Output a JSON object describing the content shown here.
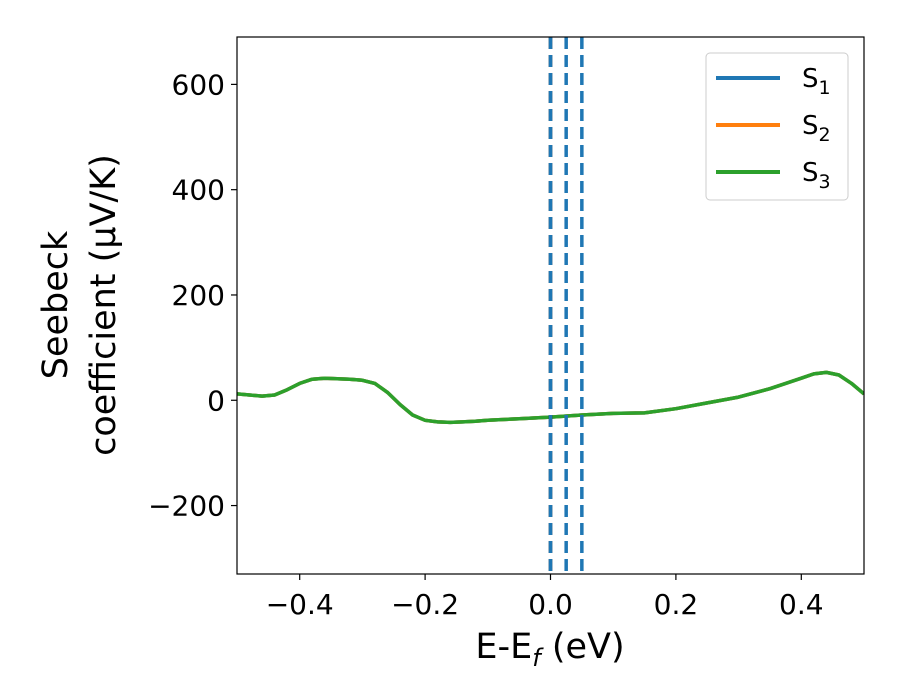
{
  "chart_data": {
    "type": "line",
    "xlabel": {
      "main": "E-E",
      "sub": "f",
      "suffix": " (eV)"
    },
    "ylabel": {
      "line1": "Seebeck",
      "line2": "coefficient  (μV/K)"
    },
    "xlim": [
      -0.5,
      0.5
    ],
    "ylim": [
      -330,
      690
    ],
    "xticks": [
      -0.4,
      -0.2,
      0.0,
      0.2,
      0.4
    ],
    "xtick_labels": [
      "−0.4",
      "−0.2",
      "0.0",
      "0.2",
      "0.4"
    ],
    "yticks": [
      -200,
      0,
      200,
      400,
      600
    ],
    "ytick_labels": [
      "−200",
      "0",
      "200",
      "400",
      "600"
    ],
    "grid": false,
    "legend_position": "top-right",
    "x": [
      -0.5,
      -0.48,
      -0.46,
      -0.44,
      -0.42,
      -0.4,
      -0.38,
      -0.36,
      -0.34,
      -0.32,
      -0.3,
      -0.28,
      -0.26,
      -0.24,
      -0.22,
      -0.2,
      -0.18,
      -0.16,
      -0.14,
      -0.12,
      -0.1,
      -0.05,
      0.0,
      0.05,
      0.1,
      0.15,
      0.2,
      0.25,
      0.3,
      0.35,
      0.4,
      0.42,
      0.44,
      0.46,
      0.48,
      0.5
    ],
    "series": [
      {
        "name": {
          "main": "S",
          "sub": "1"
        },
        "color": "#1f77b4",
        "values": [
          12,
          10,
          8,
          10,
          20,
          32,
          40,
          42,
          41,
          40,
          38,
          32,
          15,
          -8,
          -28,
          -38,
          -41,
          -42,
          -41,
          -40,
          -38,
          -35,
          -32,
          -28,
          -25,
          -24,
          -16,
          -5,
          6,
          22,
          42,
          50,
          53,
          48,
          32,
          12
        ]
      },
      {
        "name": {
          "main": "S",
          "sub": "2"
        },
        "color": "#ff7f0e",
        "values": [
          12,
          10,
          8,
          10,
          20,
          32,
          40,
          42,
          41,
          40,
          38,
          32,
          15,
          -8,
          -28,
          -38,
          -41,
          -42,
          -41,
          -40,
          -38,
          -35,
          -32,
          -28,
          -25,
          -24,
          -16,
          -5,
          6,
          22,
          42,
          50,
          53,
          48,
          32,
          12
        ]
      },
      {
        "name": {
          "main": "S",
          "sub": "3"
        },
        "color": "#2ca02c",
        "values": [
          12,
          10,
          8,
          10,
          20,
          32,
          40,
          42,
          41,
          40,
          38,
          32,
          15,
          -8,
          -28,
          -38,
          -41,
          -42,
          -41,
          -40,
          -38,
          -35,
          -32,
          -28,
          -25,
          -24,
          -16,
          -5,
          6,
          22,
          42,
          50,
          53,
          48,
          32,
          12
        ]
      }
    ],
    "vlines": [
      {
        "x": 0.0,
        "color": "#000000",
        "style": "dashed"
      },
      {
        "x": 0.0,
        "color": "#1f77b4",
        "style": "dashed"
      },
      {
        "x": 0.025,
        "color": "#1f77b4",
        "style": "dashed"
      },
      {
        "x": 0.05,
        "color": "#1f77b4",
        "style": "dashed"
      }
    ]
  }
}
